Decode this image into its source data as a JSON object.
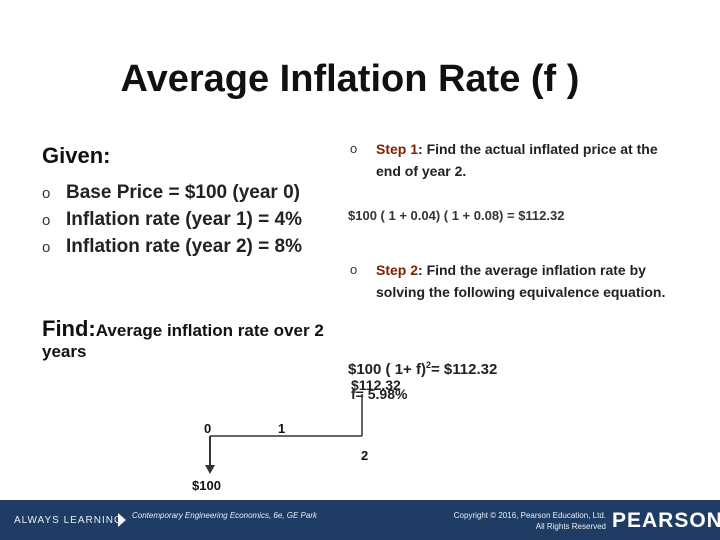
{
  "slide": {
    "title": "Average Inflation Rate (f )"
  },
  "given": {
    "heading": "Given:",
    "items": [
      "Base Price = $100 (year 0)",
      "Inflation rate (year 1) = 4%",
      "Inflation rate (year 2) = 8%"
    ],
    "bullet": "o"
  },
  "find": {
    "lead": "Find:",
    "rest": "Average inflation rate over 2 years"
  },
  "steps": [
    {
      "key": "Step 1",
      "text": ": Find the actual inflated price at the end of year 2."
    },
    {
      "key": "Step 2",
      "text": ": Find the average inflation rate by solving the following equivalence equation."
    }
  ],
  "equations": {
    "step1": "$100 ( 1 + 0.04) ( 1 + 0.08) = $112.32",
    "step2_left": "$100 ( 1+ f)",
    "step2_exp": "2",
    "step2_right": "= $112.32",
    "overlay_value": "$112.32",
    "result": "f= 5.98%"
  },
  "timeline": {
    "labels": [
      "0",
      "1",
      "2"
    ],
    "cash_label": "$100"
  },
  "footer": {
    "always": "ALWAYS LEARNING",
    "book": "Contemporary Engineering Economics, 6e, GE Park",
    "copyright_line1": "Copyright © 2016, Pearson Education, Ltd.",
    "copyright_line2": "All Rights Reserved",
    "logo": "PEARSON"
  },
  "colors": {
    "footer_bg": "#1f3d64",
    "step_key": "#7a2400"
  }
}
